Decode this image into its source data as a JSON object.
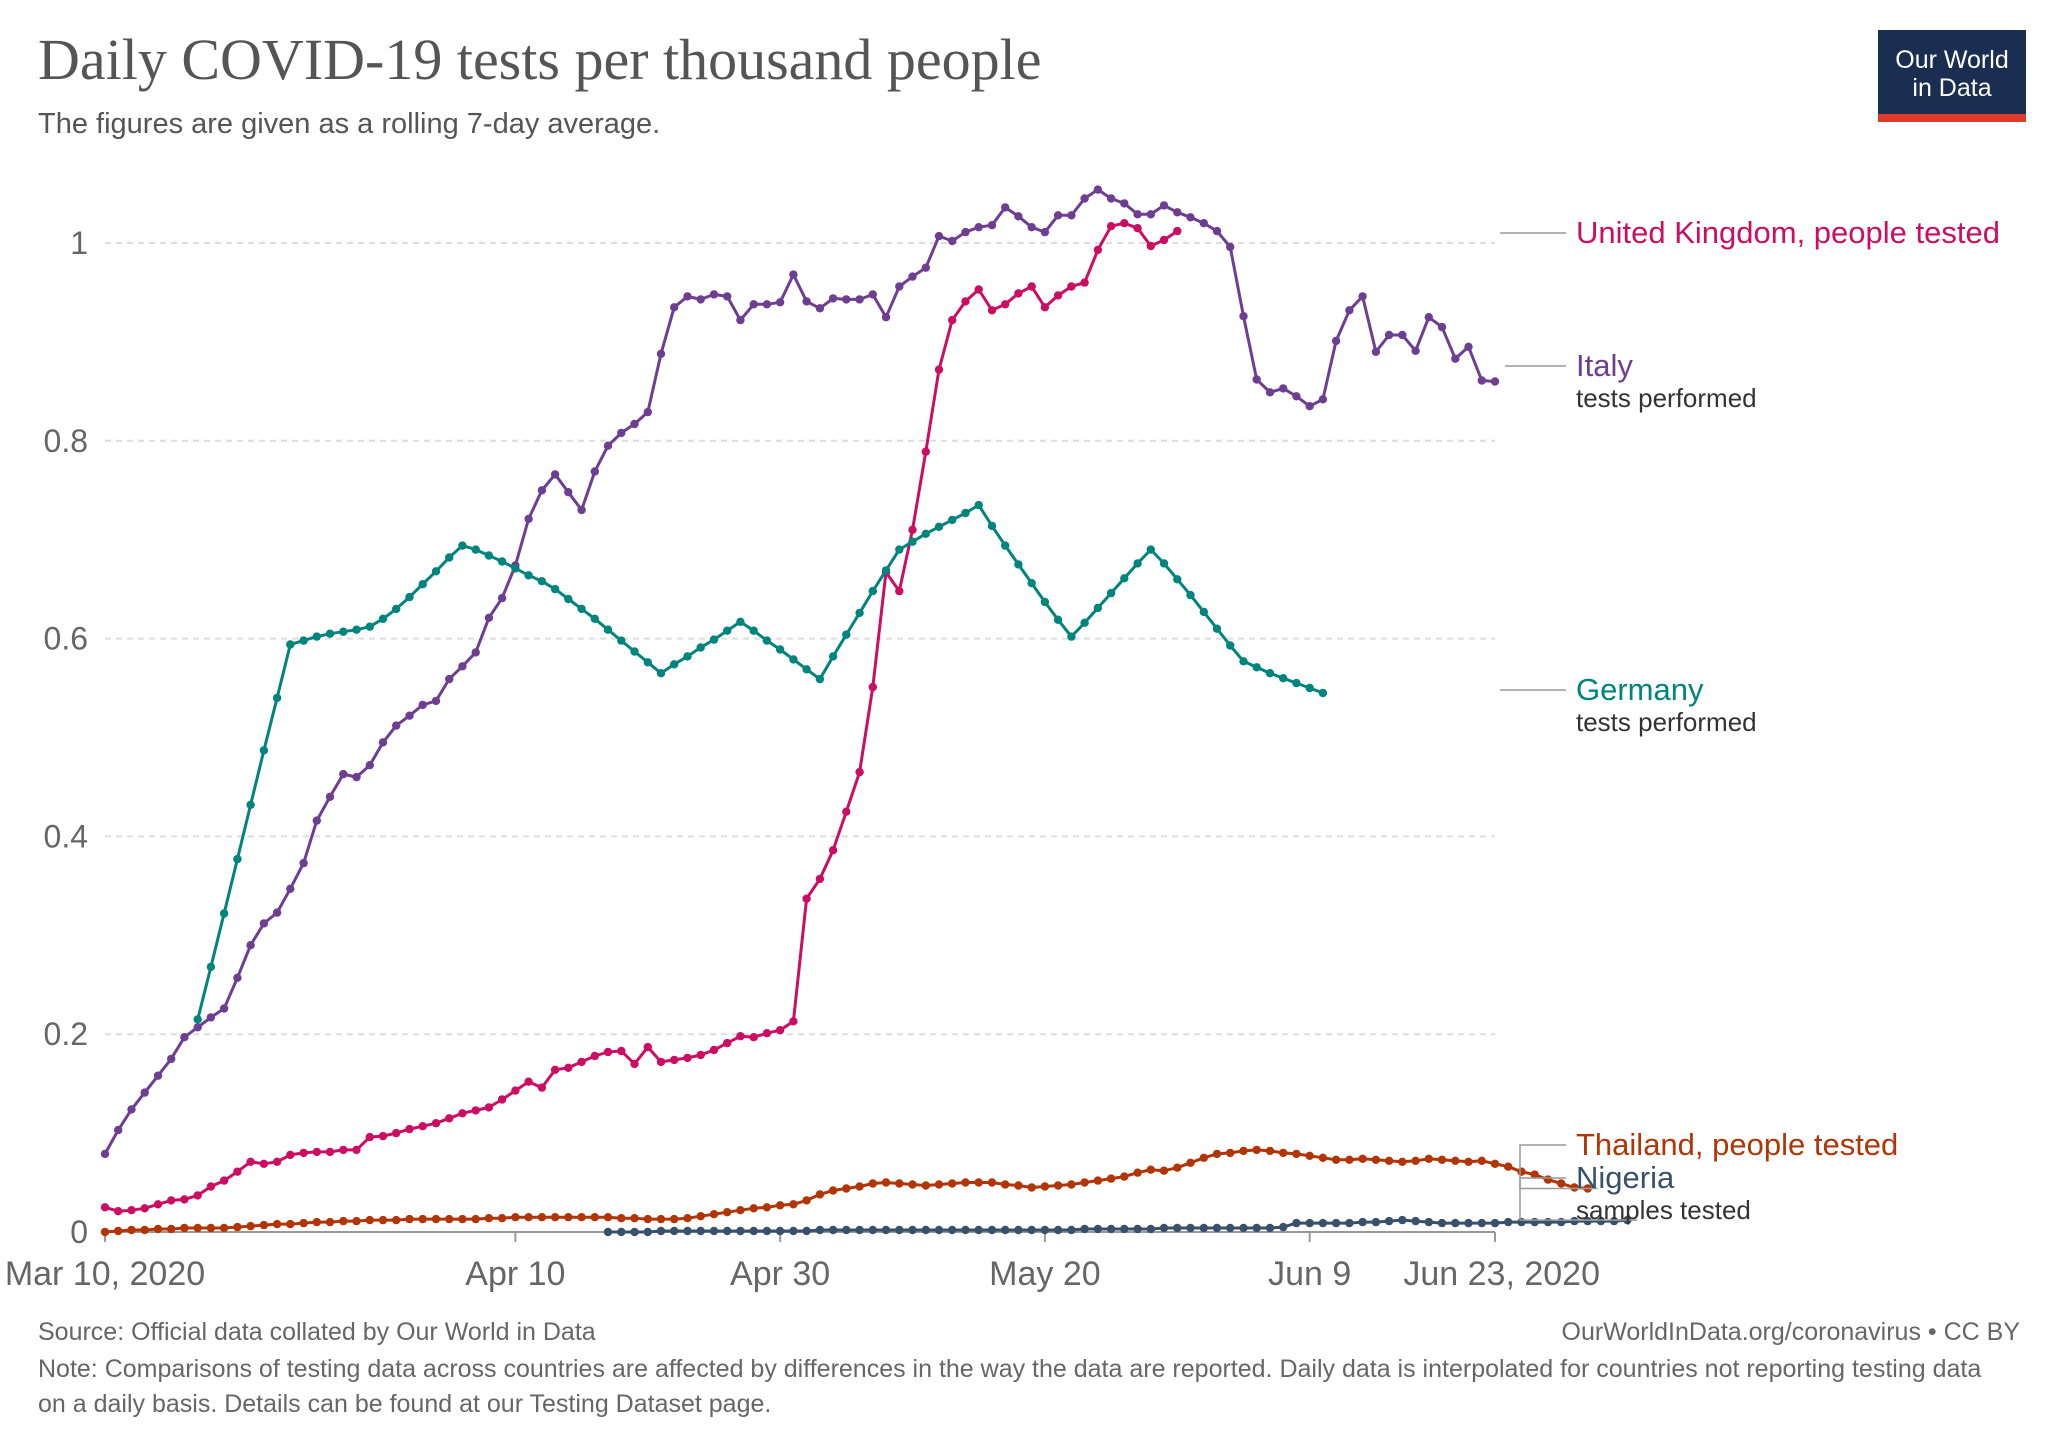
{
  "header": {
    "title": "Daily COVID-19 tests per thousand people",
    "subtitle": "The figures are given as a rolling 7-day average."
  },
  "logo": {
    "line1": "Our World",
    "line2": "in Data"
  },
  "footer": {
    "source": "Source: Official data collated by Our World in Data",
    "url": "OurWorldInData.org/coronavirus • CC BY",
    "note": "Note: Comparisons of testing data across countries are affected by differences in the way the data are reported. Daily data is interpolated for countries not reporting testing data on a daily basis. Details can be found at our Testing Dataset page."
  },
  "colors": {
    "united_kingdom": "#cc0e62",
    "italy": "#6d3e91",
    "germany": "#00847e",
    "thailand": "#b13507",
    "nigeria": "#38506a",
    "logo_background": "#1a2e51",
    "logo_stripe": "#e13a28"
  },
  "chart_data": {
    "type": "line",
    "title": "Daily COVID-19 tests per thousand people",
    "subtitle": "The figures are given as a rolling 7-day average.",
    "xlabel": "",
    "ylabel": "",
    "x_ticks": [
      {
        "date": "2020-03-10",
        "label": "Mar 10, 2020"
      },
      {
        "date": "2020-04-10",
        "label": "Apr 10"
      },
      {
        "date": "2020-04-30",
        "label": "Apr 30"
      },
      {
        "date": "2020-05-20",
        "label": "May 20"
      },
      {
        "date": "2020-06-09",
        "label": "Jun 9"
      },
      {
        "date": "2020-06-23",
        "label": "Jun 23, 2020"
      }
    ],
    "y_ticks": [
      0,
      0.2,
      0.4,
      0.6,
      0.8,
      1
    ],
    "y_tick_labels": [
      "0",
      "0.2",
      "0.4",
      "0.6",
      "0.8",
      "1"
    ],
    "xlim": [
      "2020-03-10",
      "2020-06-23"
    ],
    "ylim": [
      0,
      1.06
    ],
    "grid": "horizontal dashed",
    "legend": "right-side line labels",
    "series": [
      {
        "key": "united_kingdom",
        "name": "United Kingdom, people tested",
        "sublabel": "",
        "start_date": "2020-03-10",
        "values": [
          0.025,
          0.021,
          0.022,
          0.024,
          0.028,
          0.032,
          0.033,
          0.037,
          0.046,
          0.052,
          0.061,
          0.071,
          0.069,
          0.071,
          0.078,
          0.08,
          0.081,
          0.081,
          0.083,
          0.083,
          0.096,
          0.097,
          0.1,
          0.104,
          0.107,
          0.11,
          0.115,
          0.12,
          0.123,
          0.126,
          0.134,
          0.143,
          0.152,
          0.146,
          0.164,
          0.166,
          0.172,
          0.178,
          0.182,
          0.183,
          0.17,
          0.187,
          0.172,
          0.174,
          0.176,
          0.179,
          0.184,
          0.191,
          0.198,
          0.197,
          0.201,
          0.204,
          0.213,
          0.337,
          0.357,
          0.386,
          0.425,
          0.465,
          0.551,
          0.667,
          0.648,
          0.71,
          0.789,
          0.872,
          0.922,
          0.941,
          0.953,
          0.932,
          0.938,
          0.949,
          0.956,
          0.935,
          0.947,
          0.956,
          0.96,
          0.993,
          1.017,
          1.02,
          1.015,
          0.997,
          1.003,
          1.012
        ]
      },
      {
        "key": "italy",
        "name": "Italy",
        "sublabel": "tests performed",
        "start_date": "2020-03-10",
        "values": [
          0.079,
          0.103,
          0.124,
          0.141,
          0.158,
          0.175,
          0.197,
          0.207,
          0.217,
          0.226,
          0.257,
          0.29,
          0.312,
          0.323,
          0.347,
          0.373,
          0.416,
          0.44,
          0.463,
          0.46,
          0.472,
          0.495,
          0.512,
          0.522,
          0.533,
          0.537,
          0.559,
          0.572,
          0.586,
          0.621,
          0.641,
          0.674,
          0.721,
          0.75,
          0.766,
          0.748,
          0.73,
          0.769,
          0.795,
          0.808,
          0.817,
          0.829,
          0.888,
          0.935,
          0.946,
          0.943,
          0.948,
          0.946,
          0.922,
          0.938,
          0.938,
          0.94,
          0.968,
          0.941,
          0.934,
          0.944,
          0.943,
          0.943,
          0.948,
          0.925,
          0.956,
          0.966,
          0.975,
          1.007,
          1.002,
          1.011,
          1.016,
          1.018,
          1.036,
          1.027,
          1.016,
          1.011,
          1.028,
          1.028,
          1.045,
          1.054,
          1.045,
          1.04,
          1.029,
          1.029,
          1.038,
          1.031,
          1.026,
          1.02,
          1.012,
          0.996,
          0.926,
          0.862,
          0.849,
          0.853,
          0.845,
          0.835,
          0.842,
          0.901,
          0.932,
          0.946,
          0.89,
          0.907,
          0.907,
          0.891,
          0.925,
          0.915,
          0.883,
          0.895,
          0.861,
          0.86
        ]
      },
      {
        "key": "germany",
        "name": "Germany",
        "sublabel": "tests performed",
        "start_date": "2020-03-17",
        "values": [
          0.215,
          0.268,
          0.322,
          0.377,
          0.432,
          0.487,
          0.54,
          0.594,
          0.598,
          0.602,
          0.605,
          0.607,
          0.609,
          0.612,
          0.62,
          0.63,
          0.642,
          0.655,
          0.668,
          0.682,
          0.694,
          0.69,
          0.684,
          0.678,
          0.671,
          0.664,
          0.658,
          0.65,
          0.64,
          0.63,
          0.62,
          0.609,
          0.598,
          0.587,
          0.576,
          0.565,
          0.574,
          0.582,
          0.591,
          0.599,
          0.608,
          0.617,
          0.608,
          0.598,
          0.589,
          0.579,
          0.569,
          0.559,
          0.582,
          0.604,
          0.626,
          0.648,
          0.669,
          0.69,
          0.698,
          0.706,
          0.713,
          0.72,
          0.727,
          0.735,
          0.714,
          0.694,
          0.675,
          0.656,
          0.637,
          0.619,
          0.602,
          0.616,
          0.631,
          0.646,
          0.661,
          0.676,
          0.69,
          0.676,
          0.66,
          0.644,
          0.627,
          0.61,
          0.593,
          0.577,
          0.571,
          0.565,
          0.56,
          0.555,
          0.55,
          0.545
        ]
      },
      {
        "key": "thailand",
        "name": "Thailand, people tested",
        "sublabel": "",
        "start_date": "2020-03-10",
        "values": [
          0.0,
          0.001,
          0.002,
          0.002,
          0.003,
          0.003,
          0.004,
          0.004,
          0.004,
          0.004,
          0.005,
          0.006,
          0.007,
          0.008,
          0.008,
          0.009,
          0.01,
          0.01,
          0.011,
          0.011,
          0.012,
          0.012,
          0.012,
          0.013,
          0.013,
          0.013,
          0.013,
          0.013,
          0.013,
          0.014,
          0.014,
          0.015,
          0.015,
          0.015,
          0.015,
          0.015,
          0.015,
          0.015,
          0.015,
          0.014,
          0.014,
          0.013,
          0.013,
          0.013,
          0.014,
          0.016,
          0.018,
          0.02,
          0.022,
          0.024,
          0.025,
          0.027,
          0.028,
          0.032,
          0.038,
          0.042,
          0.044,
          0.046,
          0.049,
          0.05,
          0.049,
          0.048,
          0.047,
          0.048,
          0.049,
          0.05,
          0.05,
          0.05,
          0.048,
          0.047,
          0.045,
          0.046,
          0.047,
          0.048,
          0.05,
          0.052,
          0.054,
          0.056,
          0.06,
          0.063,
          0.062,
          0.065,
          0.07,
          0.075,
          0.079,
          0.08,
          0.082,
          0.083,
          0.082,
          0.08,
          0.079,
          0.077,
          0.075,
          0.073,
          0.073,
          0.074,
          0.073,
          0.072,
          0.071,
          0.072,
          0.074,
          0.073,
          0.072,
          0.071,
          0.072,
          0.069,
          0.066,
          0.061,
          0.058,
          0.053,
          0.049,
          0.045,
          0.044
        ]
      },
      {
        "key": "nigeria",
        "name": "Nigeria",
        "sublabel": "samples tested",
        "start_date": "2020-04-17",
        "values": [
          0.0,
          0.0,
          0.0,
          0.0,
          0.001,
          0.001,
          0.001,
          0.001,
          0.001,
          0.001,
          0.001,
          0.001,
          0.001,
          0.001,
          0.001,
          0.001,
          0.002,
          0.002,
          0.002,
          0.002,
          0.002,
          0.002,
          0.002,
          0.002,
          0.002,
          0.002,
          0.002,
          0.002,
          0.002,
          0.002,
          0.002,
          0.002,
          0.002,
          0.002,
          0.002,
          0.002,
          0.003,
          0.003,
          0.003,
          0.003,
          0.003,
          0.003,
          0.004,
          0.004,
          0.004,
          0.004,
          0.004,
          0.004,
          0.004,
          0.004,
          0.004,
          0.005,
          0.009,
          0.009,
          0.009,
          0.009,
          0.009,
          0.01,
          0.01,
          0.011,
          0.012,
          0.011,
          0.01,
          0.009,
          0.009,
          0.009,
          0.009,
          0.009,
          0.01,
          0.01,
          0.01,
          0.01,
          0.01,
          0.011,
          0.011,
          0.011,
          0.011,
          0.012
        ]
      }
    ]
  }
}
